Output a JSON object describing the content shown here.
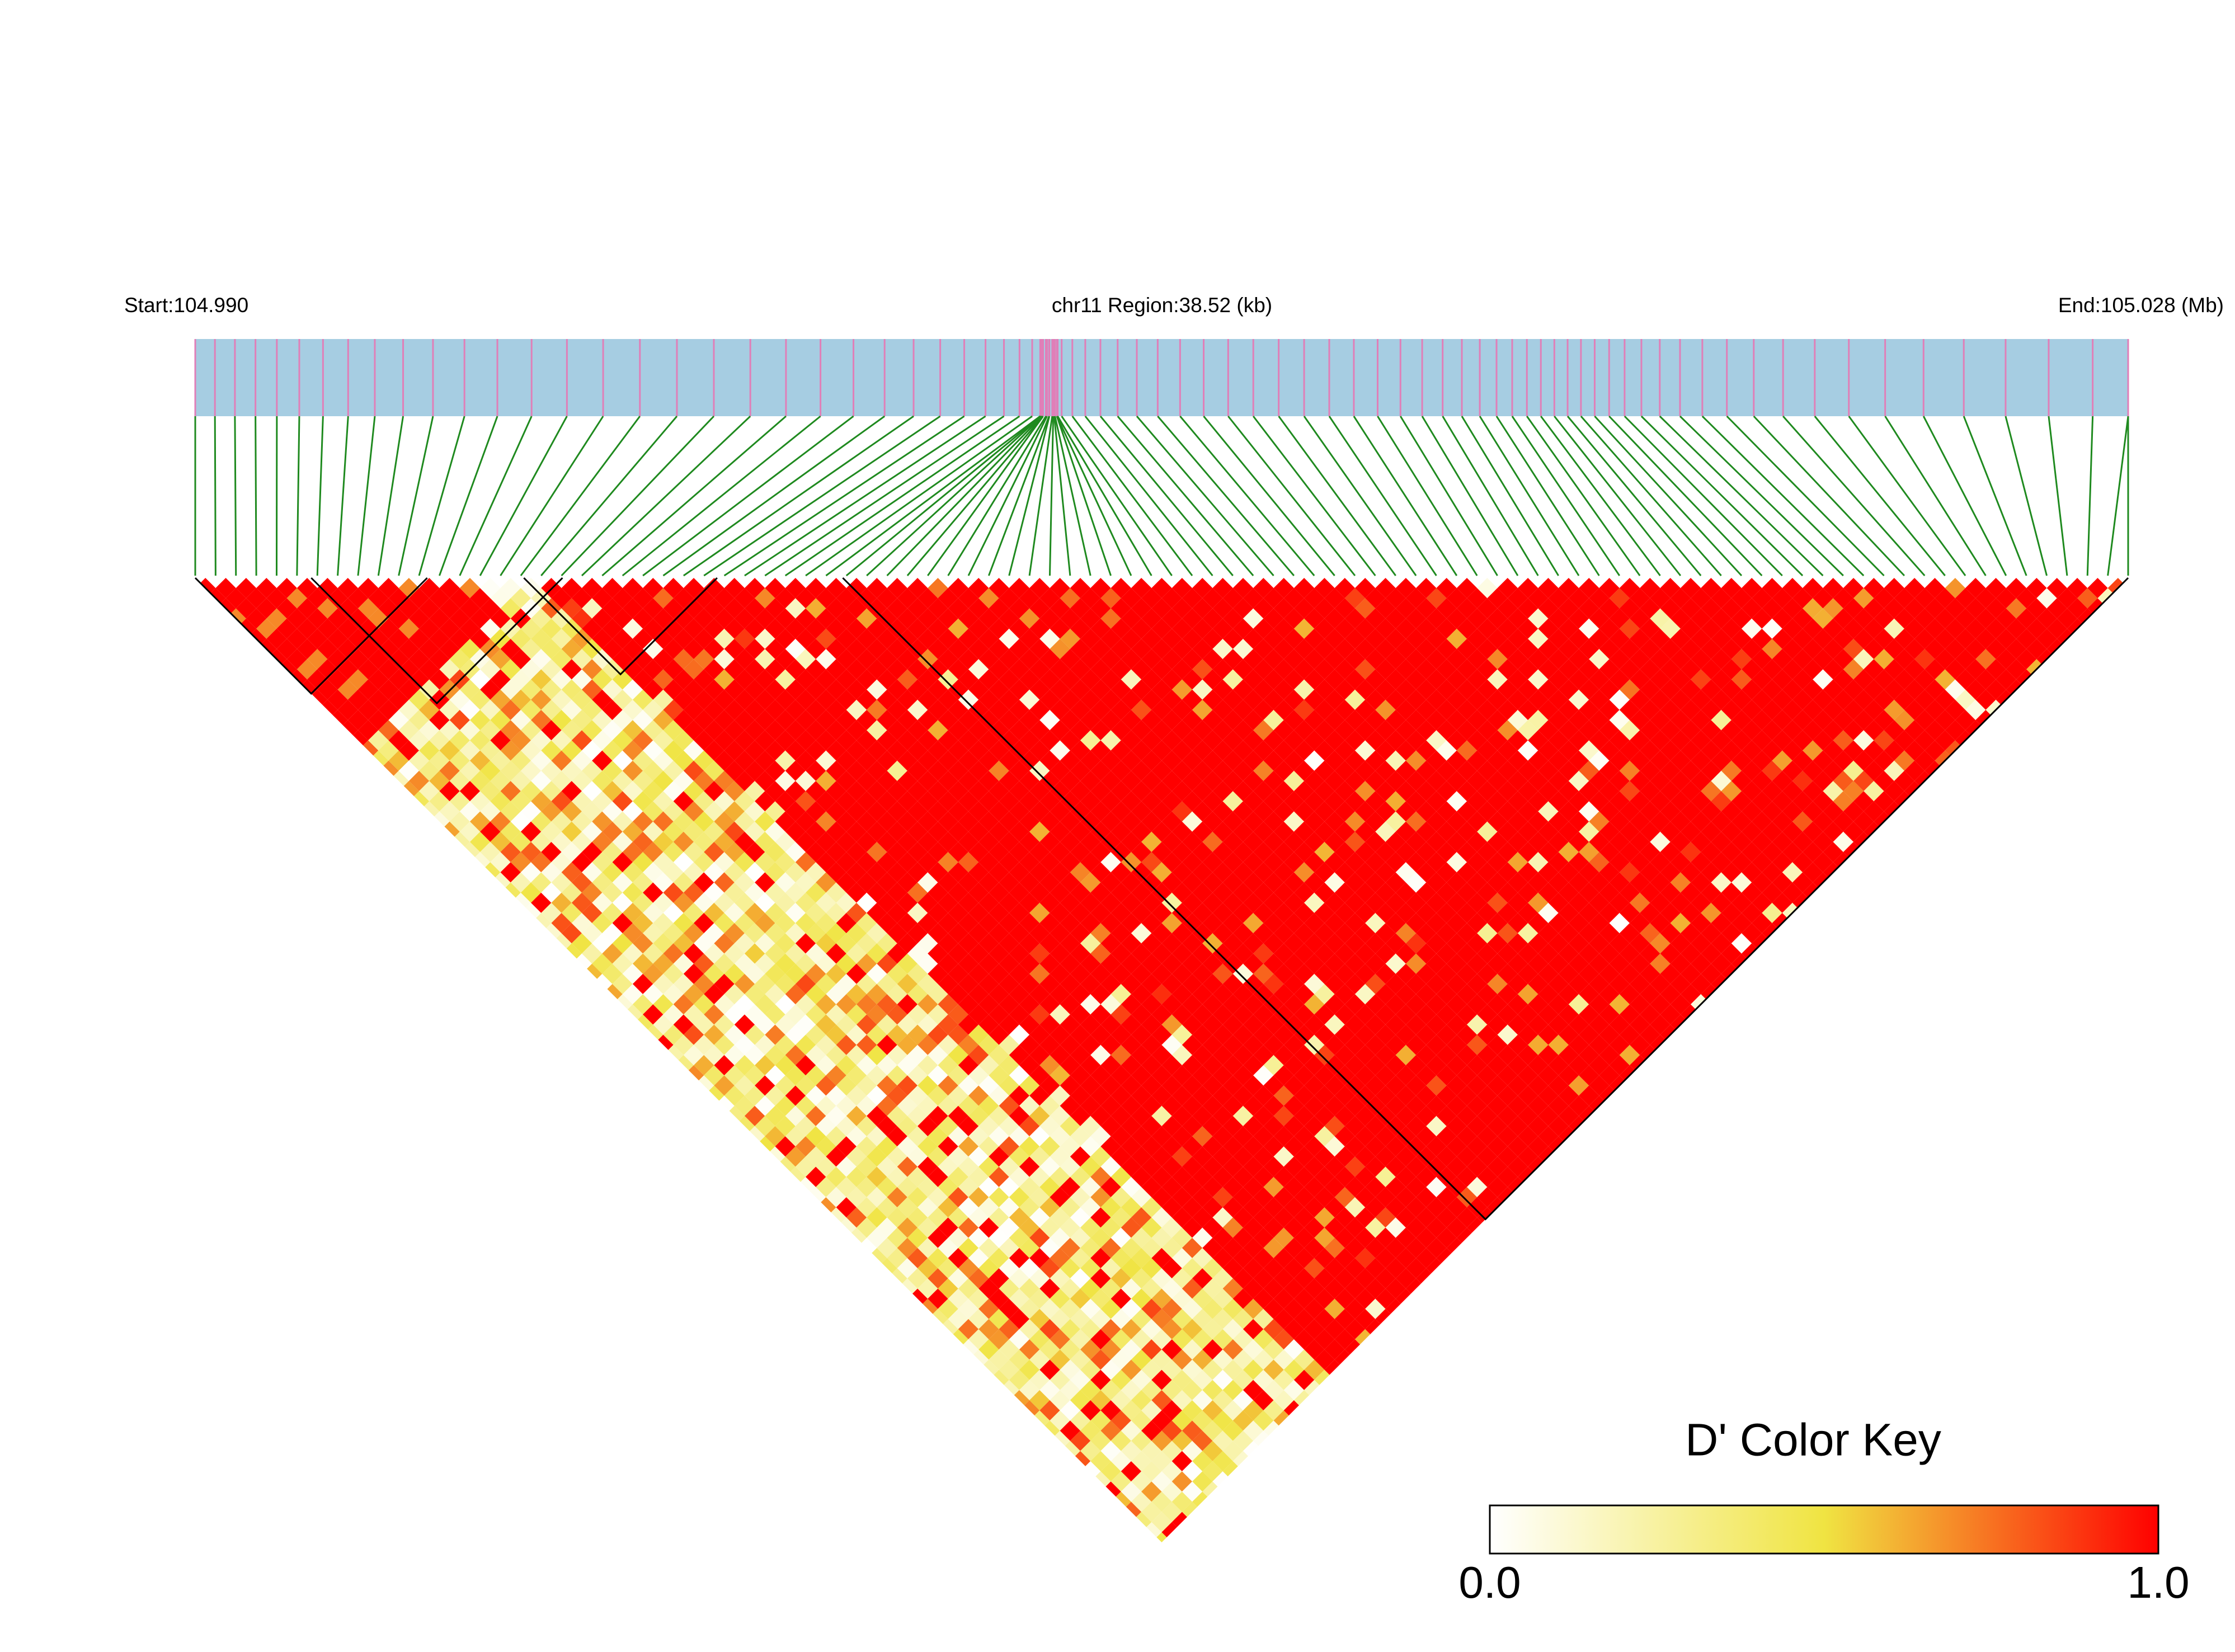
{
  "chart_data": {
    "type": "heatmap",
    "start_label": "Start:104.990",
    "region_label": "chr11 Region:38.52 (kb)",
    "end_label": "End:105.028 (Mb)",
    "colorbar": {
      "title": "D' Color Key",
      "lim": [
        0,
        1
      ],
      "ticks": [
        {
          "value": 0,
          "label": "0.0"
        },
        {
          "value": 1,
          "label": "1.0"
        }
      ],
      "colors": [
        "#ffffff",
        "#f0e442",
        "#ff0000"
      ]
    }
  }
}
